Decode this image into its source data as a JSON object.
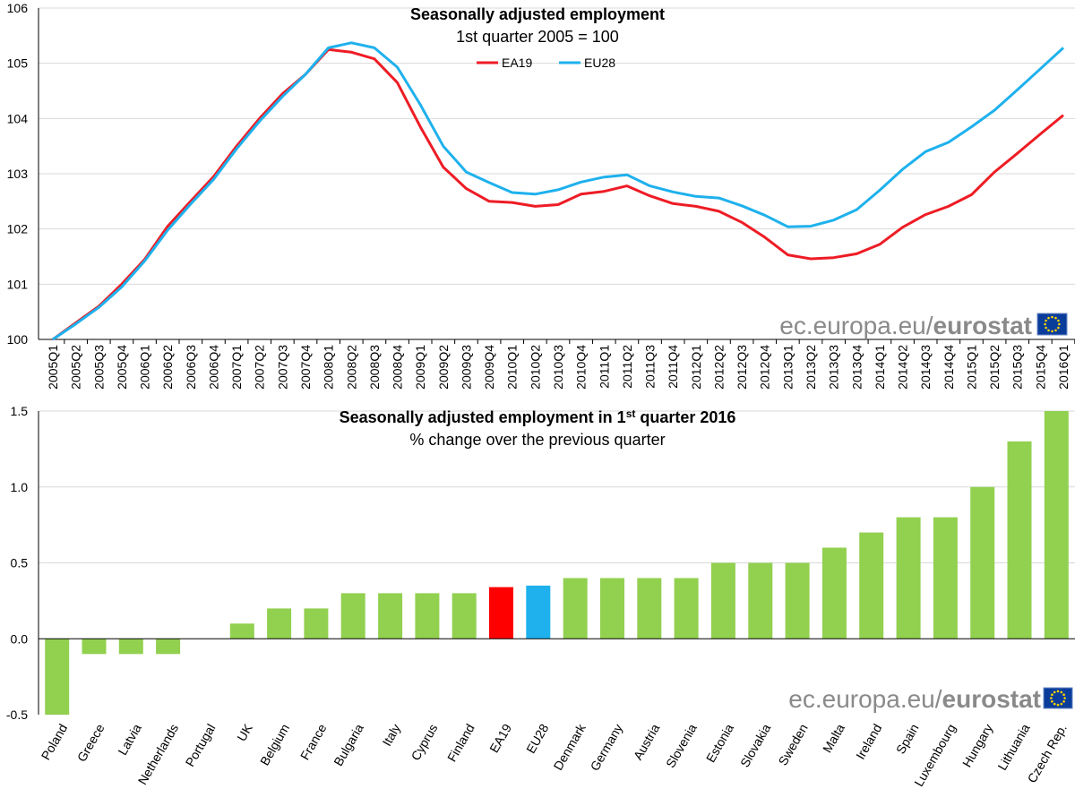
{
  "chart_data": [
    {
      "type": "line",
      "title": "Seasonally adjusted employment",
      "subtitle": "1st quarter 2005 = 100",
      "ylim": [
        100,
        106
      ],
      "yticks": [
        "100",
        "101",
        "102",
        "103",
        "104",
        "105",
        "106"
      ],
      "x": [
        "2005Q1",
        "2005Q2",
        "2005Q3",
        "2005Q4",
        "2006Q1",
        "2006Q2",
        "2006Q3",
        "2006Q4",
        "2007Q1",
        "2007Q2",
        "2007Q3",
        "2007Q4",
        "2008Q1",
        "2008Q2",
        "2008Q3",
        "2008Q4",
        "2009Q1",
        "2009Q2",
        "2009Q3",
        "2009Q4",
        "2010Q1",
        "2010Q2",
        "2010Q3",
        "2010Q4",
        "2011Q1",
        "2011Q2",
        "2011Q3",
        "2011Q4",
        "2012Q1",
        "2012Q2",
        "2012Q3",
        "2012Q4",
        "2013Q1",
        "2013Q2",
        "2013Q3",
        "2013Q4",
        "2014Q1",
        "2014Q2",
        "2014Q3",
        "2014Q4",
        "2015Q1",
        "2015Q2",
        "2015Q3",
        "2015Q4",
        "2016Q1"
      ],
      "series": [
        {
          "name": "EA19",
          "color": "#ee1c25",
          "values": [
            100.0,
            100.3,
            100.6,
            101.0,
            101.45,
            102.05,
            102.5,
            102.95,
            103.5,
            104.0,
            104.45,
            104.8,
            105.25,
            105.2,
            105.08,
            104.65,
            103.85,
            103.12,
            102.73,
            102.5,
            102.48,
            102.41,
            102.44,
            102.63,
            102.68,
            102.78,
            102.6,
            102.46,
            102.41,
            102.32,
            102.12,
            101.85,
            101.53,
            101.46,
            101.48,
            101.55,
            101.72,
            102.03,
            102.26,
            102.41,
            102.62,
            103.03,
            103.37,
            103.72,
            104.06
          ]
        },
        {
          "name": "EU28",
          "color": "#1eb1ed",
          "values": [
            100.0,
            100.28,
            100.58,
            100.95,
            101.42,
            101.98,
            102.45,
            102.9,
            103.45,
            103.95,
            104.4,
            104.8,
            105.28,
            105.37,
            105.28,
            104.93,
            104.25,
            103.5,
            103.03,
            102.84,
            102.66,
            102.63,
            102.71,
            102.85,
            102.94,
            102.98,
            102.78,
            102.67,
            102.59,
            102.56,
            102.42,
            102.25,
            102.04,
            102.05,
            102.16,
            102.35,
            102.7,
            103.08,
            103.4,
            103.57,
            103.85,
            104.15,
            104.52,
            104.9,
            105.28
          ]
        }
      ],
      "legend": [
        "EA19",
        "EU28"
      ],
      "watermark": {
        "prefix": "ec.europa.eu/",
        "brand": "eurostat"
      }
    },
    {
      "type": "bar",
      "title_main": "Seasonally adjusted employment in 1",
      "title_sup": "st",
      "title_end": " quarter 2016",
      "subtitle": "% change over the previous quarter",
      "ylim": [
        -0.5,
        1.5
      ],
      "yticks": [
        "-0.5",
        "0.0",
        "0.5",
        "1.0",
        "1.5"
      ],
      "categories": [
        "Poland",
        "Greece",
        "Latvia",
        "Netherlands",
        "Portugal",
        "UK",
        "Belgium",
        "France",
        "Bulgaria",
        "Italy",
        "Cyprus",
        "Finland",
        "EA19",
        "EU28",
        "Denmark",
        "Germany",
        "Austria",
        "Slovenia",
        "Estonia",
        "Slovakia",
        "Sweden",
        "Malta",
        "Ireland",
        "Spain",
        "Luxembourg",
        "Hungary",
        "Lithuania",
        "Czech Rep."
      ],
      "values": [
        -0.5,
        -0.1,
        -0.1,
        -0.1,
        0.0,
        0.1,
        0.2,
        0.2,
        0.3,
        0.3,
        0.3,
        0.3,
        0.34,
        0.35,
        0.4,
        0.4,
        0.4,
        0.4,
        0.5,
        0.5,
        0.5,
        0.6,
        0.7,
        0.8,
        0.8,
        1.0,
        1.3,
        1.5
      ],
      "colors": {
        "default": "#92d050",
        "EA19": "#ff0000",
        "EU28": "#1eb1ed"
      },
      "watermark": {
        "prefix": "ec.europa.eu/",
        "brand": "eurostat"
      }
    }
  ]
}
